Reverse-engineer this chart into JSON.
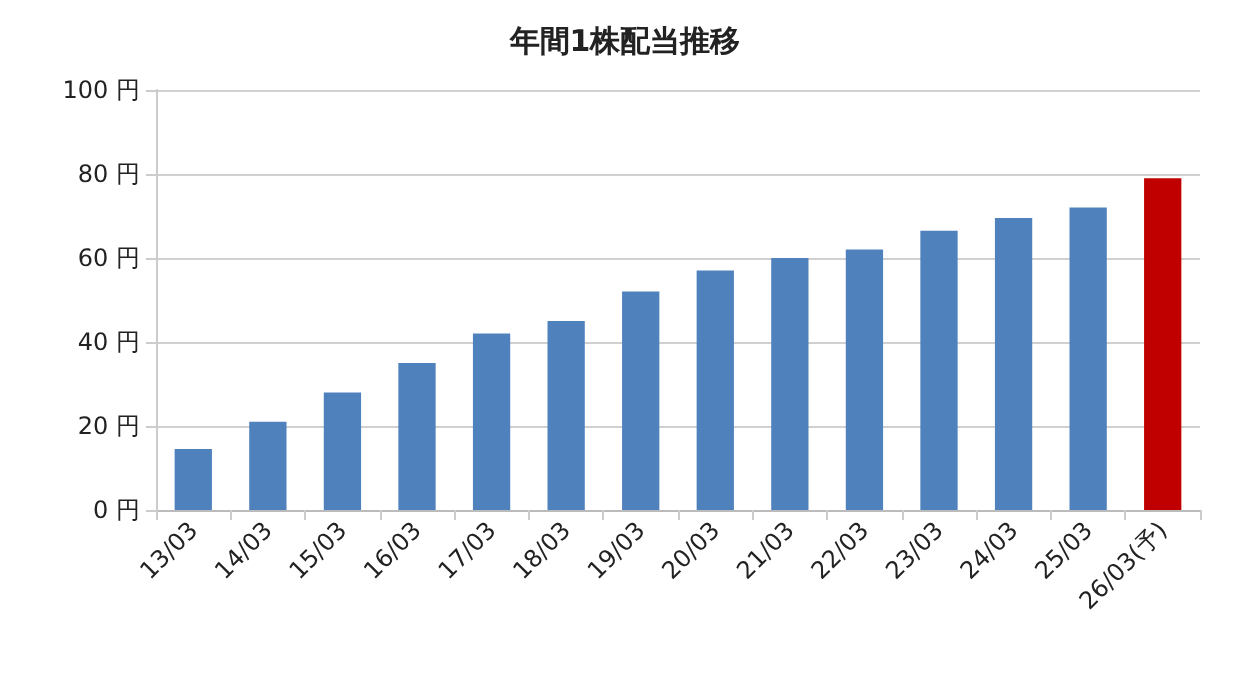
{
  "chart_data": {
    "type": "bar",
    "title": "年間1株配当推移",
    "categories": [
      "13/03",
      "14/03",
      "15/03",
      "16/03",
      "17/03",
      "18/03",
      "19/03",
      "20/03",
      "21/03",
      "22/03",
      "23/03",
      "24/03",
      "25/03",
      "26/03(予)"
    ],
    "values": [
      14.5,
      21,
      28,
      35,
      42,
      45,
      52,
      57,
      60,
      62,
      66.5,
      69.5,
      72,
      79
    ],
    "colors": [
      "#4f81bd",
      "#4f81bd",
      "#4f81bd",
      "#4f81bd",
      "#4f81bd",
      "#4f81bd",
      "#4f81bd",
      "#4f81bd",
      "#4f81bd",
      "#4f81bd",
      "#4f81bd",
      "#4f81bd",
      "#4f81bd",
      "#c00000"
    ],
    "ylim": [
      0,
      100
    ],
    "yticks": [
      {
        "value": 0,
        "label": "0 円"
      },
      {
        "value": 20,
        "label": "20 円"
      },
      {
        "value": 40,
        "label": "40 円"
      },
      {
        "value": 60,
        "label": "60 円"
      },
      {
        "value": 80,
        "label": "80 円"
      },
      {
        "value": 100,
        "label": "100 円"
      }
    ],
    "grid": "y"
  }
}
